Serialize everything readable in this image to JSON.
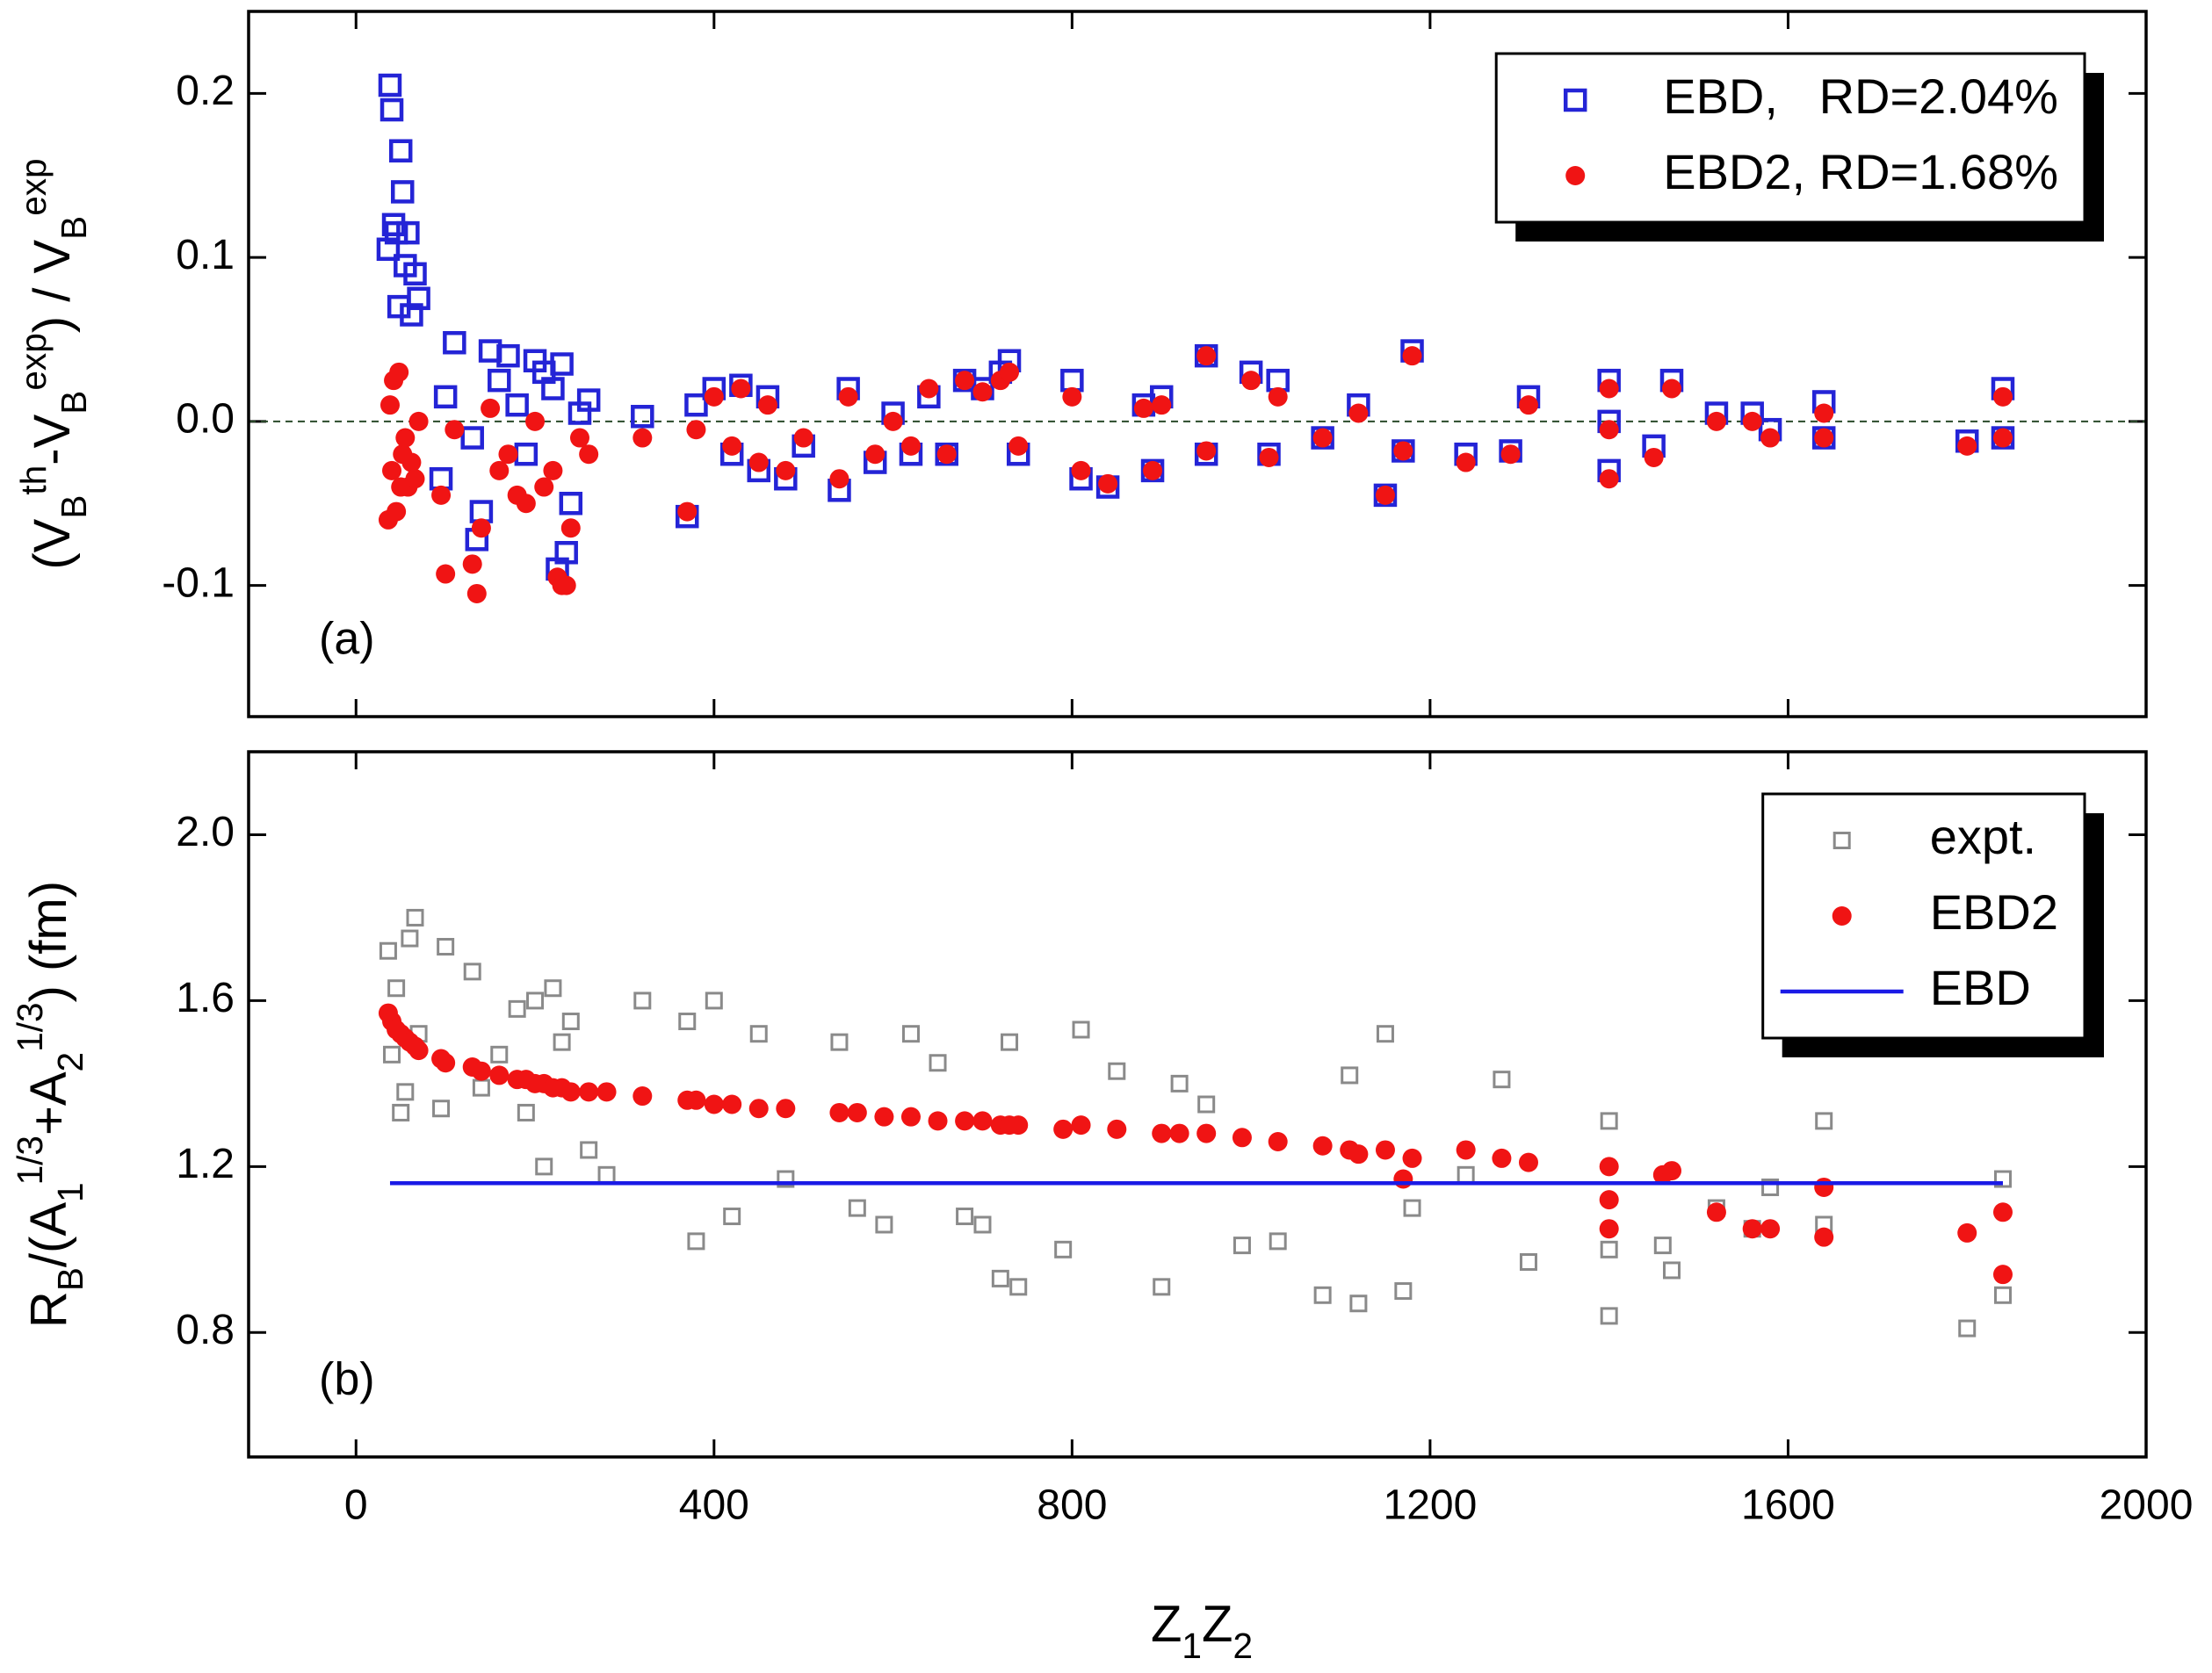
{
  "chart_data": [
    {
      "type": "scatter",
      "ylabel": [
        {
          "t": "(V"
        },
        {
          "t": "B",
          "s": "sub"
        },
        {
          "t": "th",
          "s": "super"
        },
        {
          "t": "-V"
        },
        {
          "t": "B",
          "s": "sub"
        },
        {
          "t": "exp",
          "s": "super"
        },
        {
          "t": ") / V"
        },
        {
          "t": "B",
          "s": "sub"
        },
        {
          "t": "exp",
          "s": "super"
        }
      ],
      "panel_label": "(a)",
      "xlim": [
        -120,
        2000
      ],
      "xticks": [
        0,
        400,
        800,
        1200,
        1600,
        2000
      ],
      "xtick_labels": false,
      "ylim": [
        -0.18,
        0.25
      ],
      "yticks": [
        -0.1,
        {
          "value": 0,
          "label": "0.0"
        },
        0.1,
        0.2
      ],
      "hline": 0,
      "legend": "upper right",
      "series": [
        {
          "name": "EBD,   RD=2.04%",
          "color": "#2424d6",
          "marker": "open-square",
          "x": [
            36,
            38,
            40,
            42,
            45,
            48,
            50,
            52,
            55,
            58,
            62,
            66,
            70,
            95,
            100,
            110,
            130,
            135,
            140,
            150,
            160,
            170,
            180,
            190,
            200,
            210,
            220,
            225,
            230,
            235,
            240,
            250,
            260,
            320,
            370,
            380,
            400,
            420,
            430,
            450,
            460,
            480,
            500,
            540,
            550,
            580,
            600,
            620,
            640,
            660,
            680,
            700,
            720,
            730,
            740,
            800,
            810,
            840,
            880,
            890,
            900,
            950,
            950,
            1000,
            1020,
            1030,
            1080,
            1120,
            1150,
            1170,
            1180,
            1240,
            1290,
            1310,
            1400,
            1400,
            1400,
            1450,
            1470,
            1520,
            1560,
            1580,
            1640,
            1640,
            1800,
            1840,
            1840
          ],
          "values": [
            0.105,
            0.205,
            0.19,
            0.12,
            0.115,
            0.07,
            0.165,
            0.14,
            0.095,
            0.115,
            0.065,
            0.09,
            0.075,
            -0.035,
            0.015,
            0.048,
            -0.01,
            -0.072,
            -0.055,
            0.043,
            0.025,
            0.04,
            0.01,
            -0.02,
            0.037,
            0.03,
            0.02,
            -0.09,
            0.035,
            -0.08,
            -0.05,
            0.005,
            0.013,
            0.003,
            -0.058,
            0.01,
            0.02,
            -0.02,
            0.022,
            -0.03,
            0.015,
            -0.035,
            -0.015,
            -0.042,
            0.02,
            -0.025,
            0.005,
            -0.02,
            0.015,
            -0.02,
            0.025,
            0.02,
            0.03,
            0.037,
            -0.02,
            0.025,
            -0.035,
            -0.04,
            0.01,
            -0.03,
            0.015,
            0.04,
            -0.02,
            0.03,
            -0.02,
            0.025,
            -0.01,
            0.01,
            -0.045,
            -0.018,
            0.043,
            -0.02,
            -0.018,
            0.015,
            0.025,
            -0.03,
            0.0,
            -0.015,
            0.025,
            0.005,
            0.005,
            -0.005,
            0.012,
            -0.01,
            -0.012,
            0.02,
            -0.01
          ]
        },
        {
          "name": "EBD2, RD=1.68%",
          "color": "#f01414",
          "marker": "dot",
          "x": [
            36,
            38,
            40,
            42,
            45,
            48,
            50,
            52,
            55,
            58,
            62,
            66,
            70,
            95,
            100,
            110,
            130,
            135,
            140,
            150,
            160,
            170,
            180,
            190,
            200,
            210,
            220,
            225,
            230,
            235,
            240,
            250,
            260,
            320,
            370,
            380,
            400,
            420,
            430,
            450,
            460,
            480,
            500,
            540,
            550,
            580,
            600,
            620,
            640,
            660,
            680,
            700,
            720,
            730,
            740,
            800,
            810,
            840,
            880,
            890,
            900,
            950,
            950,
            1000,
            1020,
            1030,
            1080,
            1120,
            1150,
            1170,
            1180,
            1240,
            1290,
            1310,
            1400,
            1400,
            1400,
            1450,
            1470,
            1520,
            1560,
            1580,
            1640,
            1640,
            1800,
            1840,
            1840
          ],
          "values": [
            -0.06,
            0.01,
            -0.03,
            0.025,
            -0.055,
            0.03,
            -0.04,
            -0.02,
            -0.01,
            -0.04,
            -0.025,
            -0.035,
            0.0,
            -0.045,
            -0.093,
            -0.005,
            -0.087,
            -0.105,
            -0.065,
            0.008,
            -0.03,
            -0.02,
            -0.045,
            -0.05,
            0.0,
            -0.04,
            -0.03,
            -0.095,
            -0.1,
            -0.1,
            -0.065,
            -0.01,
            -0.02,
            -0.01,
            -0.055,
            -0.005,
            0.015,
            -0.015,
            0.02,
            -0.025,
            0.01,
            -0.03,
            -0.01,
            -0.035,
            0.015,
            -0.02,
            0.0,
            -0.015,
            0.02,
            -0.02,
            0.025,
            0.018,
            0.025,
            0.03,
            -0.015,
            0.015,
            -0.03,
            -0.038,
            0.008,
            -0.03,
            0.01,
            0.04,
            -0.018,
            0.025,
            -0.022,
            0.015,
            -0.01,
            0.005,
            -0.045,
            -0.018,
            0.04,
            -0.025,
            -0.02,
            0.01,
            0.02,
            -0.035,
            -0.005,
            -0.022,
            0.02,
            0.0,
            0.0,
            -0.01,
            0.005,
            -0.01,
            -0.015,
            0.015,
            -0.01
          ]
        }
      ]
    },
    {
      "type": "scatter",
      "ylabel": [
        {
          "t": "R"
        },
        {
          "t": "B",
          "s": "sub"
        },
        {
          "t": "/(A"
        },
        {
          "t": "1",
          "s": "sub"
        },
        {
          "t": "1/3",
          "s": "super"
        },
        {
          "t": "+A"
        },
        {
          "t": "2",
          "s": "sub"
        },
        {
          "t": "1/3",
          "s": "super"
        },
        {
          "t": ") (fm)"
        }
      ],
      "xlabel": [
        {
          "t": "Z"
        },
        {
          "t": "1",
          "s": "sub"
        },
        {
          "t": "Z"
        },
        {
          "t": "2",
          "s": "sub"
        }
      ],
      "panel_label": "(b)",
      "xlim": [
        -120,
        2000
      ],
      "xticks": [
        0,
        400,
        800,
        1200,
        1600,
        2000
      ],
      "xtick_labels": true,
      "ylim": [
        0.5,
        2.2
      ],
      "yticks": [
        0.8,
        1.2,
        1.6,
        {
          "value": 2,
          "label": "2.0"
        }
      ],
      "legend": "upper right",
      "series": [
        {
          "name": "expt.",
          "color": "#8a8a8a",
          "marker": "open-square-small",
          "x": [
            36,
            40,
            45,
            50,
            55,
            60,
            66,
            70,
            95,
            100,
            130,
            140,
            160,
            180,
            190,
            200,
            210,
            220,
            230,
            240,
            260,
            280,
            320,
            370,
            380,
            400,
            420,
            450,
            480,
            540,
            560,
            590,
            620,
            650,
            680,
            700,
            720,
            730,
            740,
            790,
            810,
            850,
            900,
            920,
            950,
            990,
            1030,
            1080,
            1110,
            1120,
            1150,
            1170,
            1180,
            1240,
            1280,
            1310,
            1400,
            1400,
            1400,
            1460,
            1470,
            1520,
            1560,
            1580,
            1640,
            1640,
            1800,
            1840,
            1840
          ],
          "values": [
            1.72,
            1.47,
            1.63,
            1.33,
            1.38,
            1.75,
            1.8,
            1.52,
            1.34,
            1.73,
            1.67,
            1.39,
            1.47,
            1.58,
            1.33,
            1.6,
            1.2,
            1.63,
            1.5,
            1.55,
            1.24,
            1.18,
            1.6,
            1.55,
            1.02,
            1.6,
            1.08,
            1.52,
            1.17,
            1.5,
            1.1,
            1.06,
            1.52,
            1.45,
            1.08,
            1.06,
            0.93,
            1.5,
            0.91,
            1.0,
            1.53,
            1.43,
            0.91,
            1.4,
            1.35,
            1.01,
            1.02,
            0.89,
            1.42,
            0.87,
            1.52,
            0.9,
            1.1,
            1.18,
            1.41,
            0.97,
            1.31,
            0.84,
            1.0,
            1.01,
            0.95,
            1.1,
            1.05,
            1.15,
            1.31,
            1.06,
            0.81,
            1.17,
            0.89
          ]
        },
        {
          "name": "EBD2",
          "color": "#f01414",
          "marker": "dot",
          "x": [
            36,
            40,
            45,
            50,
            55,
            60,
            66,
            70,
            95,
            100,
            130,
            140,
            160,
            180,
            190,
            200,
            210,
            220,
            230,
            240,
            260,
            280,
            320,
            370,
            380,
            400,
            420,
            450,
            480,
            540,
            560,
            590,
            620,
            650,
            680,
            700,
            720,
            730,
            740,
            790,
            810,
            850,
            900,
            920,
            950,
            990,
            1030,
            1080,
            1110,
            1120,
            1150,
            1170,
            1180,
            1240,
            1280,
            1310,
            1400,
            1400,
            1400,
            1460,
            1470,
            1520,
            1560,
            1580,
            1640,
            1640,
            1800,
            1840,
            1840
          ],
          "values": [
            1.57,
            1.55,
            1.53,
            1.52,
            1.51,
            1.5,
            1.49,
            1.48,
            1.46,
            1.45,
            1.44,
            1.43,
            1.42,
            1.41,
            1.41,
            1.4,
            1.4,
            1.39,
            1.39,
            1.38,
            1.38,
            1.38,
            1.37,
            1.36,
            1.36,
            1.35,
            1.35,
            1.34,
            1.34,
            1.33,
            1.33,
            1.32,
            1.32,
            1.31,
            1.31,
            1.31,
            1.3,
            1.3,
            1.3,
            1.29,
            1.3,
            1.29,
            1.28,
            1.28,
            1.28,
            1.27,
            1.26,
            1.25,
            1.24,
            1.23,
            1.24,
            1.17,
            1.22,
            1.24,
            1.22,
            1.21,
            1.2,
            1.05,
            1.12,
            1.18,
            1.19,
            1.09,
            1.05,
            1.05,
            1.03,
            1.15,
            1.04,
            1.09,
            0.94
          ]
        },
        {
          "name": "EBD",
          "color": "#1a1ae6",
          "marker": "line",
          "x": [
            38,
            1840
          ],
          "values": [
            1.16,
            1.16
          ]
        }
      ]
    }
  ]
}
